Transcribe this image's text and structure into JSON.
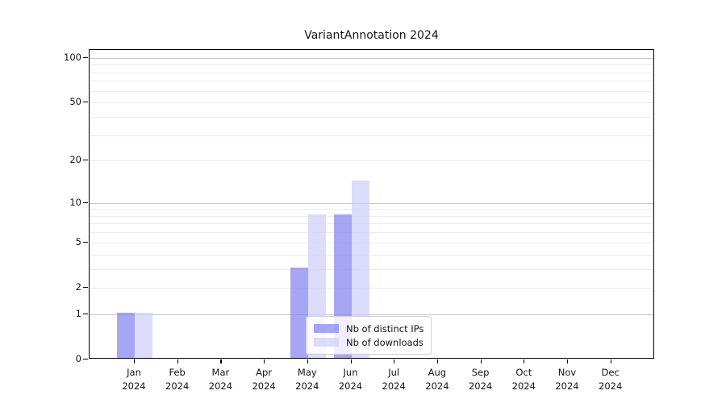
{
  "title": "VariantAnnotation 2024",
  "chart_data": {
    "type": "bar",
    "title": "VariantAnnotation 2024",
    "categories": [
      "Jan",
      "Feb",
      "Mar",
      "Apr",
      "May",
      "Jun",
      "Jul",
      "Aug",
      "Sep",
      "Oct",
      "Nov",
      "Dec"
    ],
    "x_year_label": "2024",
    "series": [
      {
        "name": "Nb of distinct IPs",
        "color": "#8080f0",
        "values": [
          1,
          0,
          0,
          0,
          3,
          8,
          0,
          0,
          0,
          0,
          0,
          0
        ]
      },
      {
        "name": "Nb of downloads",
        "color": "#cdcdfa",
        "values": [
          1,
          0,
          0,
          0,
          8,
          14,
          0,
          0,
          0,
          0,
          0,
          0
        ]
      }
    ],
    "y_tick_labels": [
      0,
      1,
      2,
      5,
      10,
      20,
      50,
      100
    ],
    "y_major_gridlines": [
      1,
      10,
      100
    ],
    "y_minor_gridlines": [
      2,
      3,
      4,
      5,
      6,
      7,
      8,
      9,
      20,
      30,
      40,
      50,
      60,
      70,
      80,
      90
    ],
    "scale": "log10(1+x)",
    "ylim": [
      0,
      113
    ],
    "grid": "on",
    "legend_position": "lower center inside plot",
    "colors": {
      "bar_distinct_ips": "#a6a6f4",
      "bar_downloads": "#dcdcf9",
      "major_grid": "#c8c8c8",
      "minor_grid": "#ececec",
      "axis": "#000000",
      "text": "#141414"
    }
  }
}
